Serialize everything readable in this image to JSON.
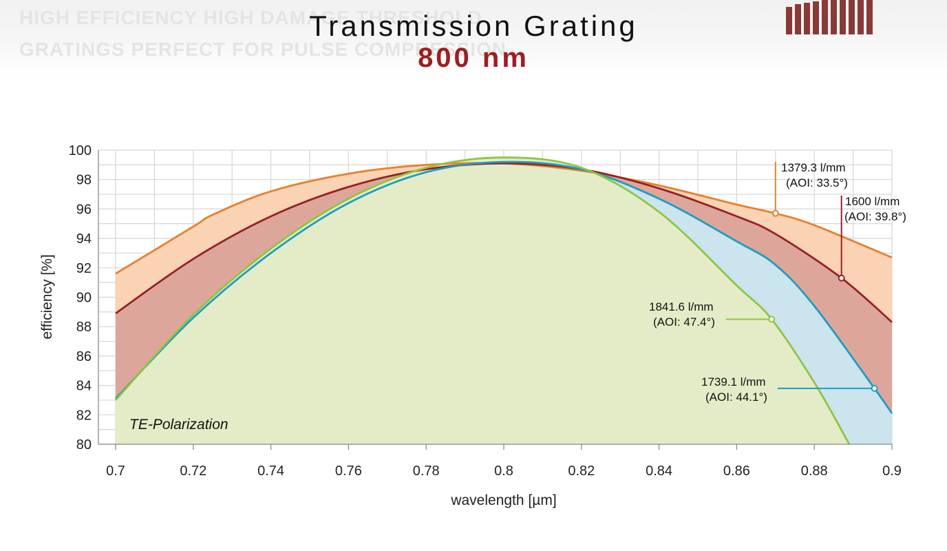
{
  "header": {
    "banner_line1": "HIGH EFFICIENCY HIGH DAMAGE THRESHOLD",
    "banner_line2": "GRATINGS PERFECT FOR PULSE COMPRESSION",
    "title": "Transmission Grating",
    "subtitle": "800 nm"
  },
  "colors": {
    "orange": "#e8802a",
    "darkred": "#9a1f22",
    "blue": "#1e9cc4",
    "green": "#8ec63f",
    "fill_orange": "#f9d3b3",
    "fill_red": "#dca79a",
    "fill_blue": "#cbe4ee",
    "fill_green": "#e4ecc7"
  },
  "chart_data": {
    "type": "line",
    "xlabel": "wavelength [µm]",
    "ylabel": "efficiency [%]",
    "xlim": [
      0.7,
      0.9
    ],
    "ylim": [
      80,
      100
    ],
    "xticks": [
      "0.7",
      "0.72",
      "0.74",
      "0.76",
      "0.78",
      "0.8",
      "0.82",
      "0.84",
      "0.86",
      "0.88",
      "0.9"
    ],
    "yticks": [
      "80",
      "82",
      "84",
      "86",
      "88",
      "90",
      "92",
      "94",
      "96",
      "98",
      "100"
    ],
    "grid": true,
    "polarization_label": "TE-Polarization",
    "series": [
      {
        "name": "1379.3 l/mm (AOI: 33.5°)",
        "color_key": "orange",
        "x": [
          0.7,
          0.72,
          0.725,
          0.74,
          0.76,
          0.78,
          0.8,
          0.82,
          0.84,
          0.86,
          0.87,
          0.88,
          0.9
        ],
        "y": [
          91.6,
          94.8,
          95.6,
          97.2,
          98.4,
          99.0,
          99.1,
          98.6,
          97.6,
          96.3,
          95.7,
          94.9,
          92.7
        ],
        "marker": {
          "x": 0.87,
          "y": 95.7
        }
      },
      {
        "name": "1600 l/mm (AOI: 39.8°)",
        "color_key": "darkred",
        "x": [
          0.7,
          0.72,
          0.74,
          0.76,
          0.78,
          0.8,
          0.82,
          0.84,
          0.86,
          0.87,
          0.887,
          0.9
        ],
        "y": [
          88.9,
          92.6,
          95.5,
          97.5,
          98.7,
          99.1,
          98.7,
          97.4,
          95.5,
          94.3,
          91.3,
          88.3
        ],
        "marker": {
          "x": 0.887,
          "y": 91.3
        }
      },
      {
        "name": "1739.1 l/mm (AOI: 44.1°)",
        "color_key": "blue",
        "x": [
          0.7,
          0.72,
          0.74,
          0.76,
          0.78,
          0.8,
          0.82,
          0.84,
          0.86,
          0.87,
          0.88,
          0.8955,
          0.9
        ],
        "y": [
          83.1,
          88.6,
          93.0,
          96.4,
          98.5,
          99.2,
          98.7,
          96.7,
          93.8,
          92.2,
          89.4,
          83.8,
          82.1
        ],
        "marker": {
          "x": 0.8955,
          "y": 83.8
        }
      },
      {
        "name": "1841.6 l/mm (AOI: 47.4°)",
        "color_key": "green",
        "x": [
          0.7,
          0.72,
          0.74,
          0.76,
          0.78,
          0.8,
          0.82,
          0.84,
          0.86,
          0.869,
          0.88,
          0.889
        ],
        "y": [
          83.0,
          88.8,
          93.3,
          96.7,
          98.8,
          99.5,
          98.8,
          95.8,
          90.8,
          88.5,
          84.2,
          80.0
        ],
        "marker": {
          "x": 0.869,
          "y": 88.5
        }
      }
    ],
    "annotations": [
      {
        "line1": "1379.3 l/mm",
        "line2": "(AOI: 33.5°)",
        "series": 0
      },
      {
        "line1": "1600 l/mm",
        "line2": "(AOI: 39.8°)",
        "series": 1
      },
      {
        "line1": "1841.6 l/mm",
        "line2": "(AOI: 47.4°)",
        "series": 3
      },
      {
        "line1": "1739.1 l/mm",
        "line2": "(AOI: 44.1°)",
        "series": 2
      }
    ]
  }
}
